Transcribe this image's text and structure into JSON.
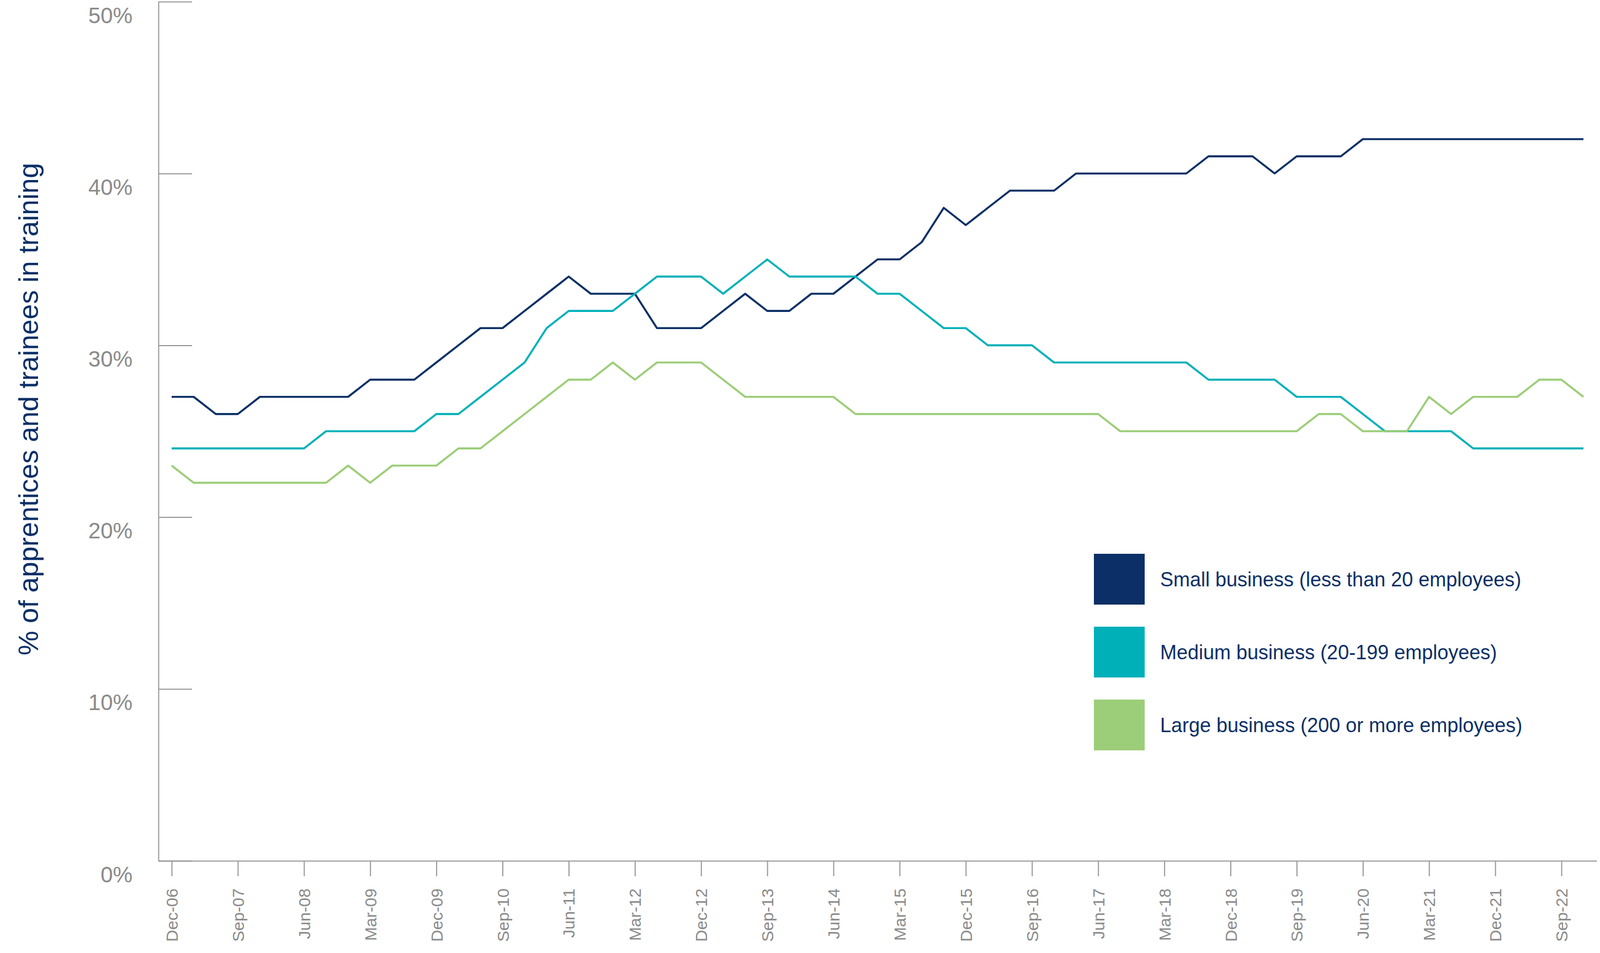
{
  "chart_data": {
    "type": "line",
    "y_label": "% of apprentices and trainees in training",
    "categories": [
      "Dec-06",
      null,
      null,
      "Sep-07",
      null,
      null,
      "Jun-08",
      null,
      null,
      "Mar-09",
      null,
      null,
      "Dec-09",
      null,
      null,
      "Sep-10",
      null,
      null,
      "Jun-11",
      null,
      null,
      "Mar-12",
      null,
      null,
      "Dec-12",
      null,
      null,
      "Sep-13",
      null,
      null,
      "Jun-14",
      null,
      null,
      "Mar-15",
      null,
      null,
      "Dec-15",
      null,
      null,
      "Sep-16",
      null,
      null,
      "Jun-17",
      null,
      null,
      "Mar-18",
      null,
      null,
      "Dec-18",
      null,
      null,
      "Sep-19",
      null,
      null,
      "Jun-20",
      null,
      null,
      "Mar-21",
      null,
      null,
      "Dec-21",
      null,
      null,
      "Sep-22",
      null
    ],
    "series": [
      {
        "name": "Small business (less than 20 employees)",
        "color": "#0b2f66",
        "values": [
          27,
          27,
          26,
          26,
          27,
          27,
          27,
          27,
          27,
          28,
          28,
          28,
          29,
          30,
          31,
          31,
          32,
          33,
          34,
          33,
          33,
          33,
          31,
          31,
          31,
          32,
          33,
          32,
          32,
          33,
          33,
          34,
          35,
          35,
          36,
          38,
          37,
          38,
          39,
          39,
          39,
          40,
          40,
          40,
          40,
          40,
          40,
          41,
          41,
          41,
          40,
          41,
          41,
          41,
          42,
          42,
          42,
          42,
          42,
          42,
          42,
          42,
          42,
          42,
          42
        ]
      },
      {
        "name": "Medium business (20-199 employees)",
        "color": "#00b0b9",
        "values": [
          24,
          24,
          24,
          24,
          24,
          24,
          24,
          25,
          25,
          25,
          25,
          25,
          26,
          26,
          27,
          28,
          29,
          31,
          32,
          32,
          32,
          33,
          34,
          34,
          34,
          33,
          34,
          35,
          34,
          34,
          34,
          34,
          33,
          33,
          32,
          31,
          31,
          30,
          30,
          30,
          29,
          29,
          29,
          29,
          29,
          29,
          29,
          28,
          28,
          28,
          28,
          27,
          27,
          27,
          26,
          25,
          25,
          25,
          25,
          24,
          24,
          24,
          24,
          24,
          24
        ]
      },
      {
        "name": "Large business (200 or more employees)",
        "color": "#9ccd78",
        "values": [
          23,
          22,
          22,
          22,
          22,
          22,
          22,
          22,
          23,
          22,
          23,
          23,
          23,
          24,
          24,
          25,
          26,
          27,
          28,
          28,
          29,
          28,
          29,
          29,
          29,
          28,
          27,
          27,
          27,
          27,
          27,
          26,
          26,
          26,
          26,
          26,
          26,
          26,
          26,
          26,
          26,
          26,
          26,
          25,
          25,
          25,
          25,
          25,
          25,
          25,
          25,
          25,
          26,
          26,
          25,
          25,
          25,
          27,
          26,
          27,
          27,
          27,
          28,
          28,
          27
        ]
      }
    ],
    "ylim": [
      0,
      50
    ],
    "yticks": [
      {
        "value": 0,
        "label": "0%"
      },
      {
        "value": 10,
        "label": "10%"
      },
      {
        "value": 20,
        "label": "20%"
      },
      {
        "value": 30,
        "label": "30%"
      },
      {
        "value": 40,
        "label": "40%"
      },
      {
        "value": 50,
        "label": "50%"
      }
    ],
    "grid": false,
    "legend": "lower right"
  }
}
